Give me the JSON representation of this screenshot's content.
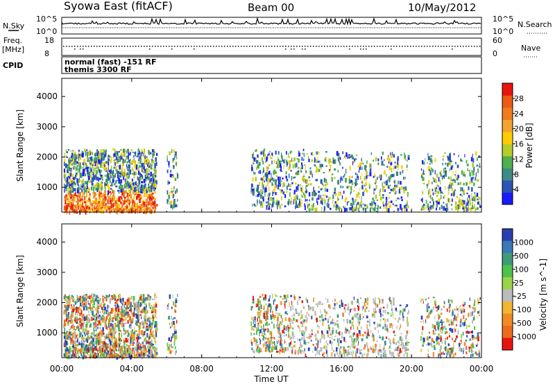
{
  "header": {
    "station": "Syowa East (fitACF)",
    "beam": "Beam 00",
    "date": "10/May/2012"
  },
  "top_panels": {
    "nsky": {
      "label": "N.Sky",
      "ticks": [
        "10^5",
        "10^0"
      ],
      "right_label": "N.Search",
      "right_ticks": [
        "10^5",
        "10^0"
      ]
    },
    "freq": {
      "label_line1": "Freq.",
      "label_line2": "[MHz]",
      "ticks": [
        "18",
        "8"
      ],
      "right_label": "Nave",
      "right_ticks": [
        "60",
        "0"
      ]
    },
    "cpid": {
      "label": "CPID",
      "line1": "normal (fast) -151 RF",
      "line2": "themis 3300 RF"
    }
  },
  "axes": {
    "xlabel": "Time UT",
    "ylabel": "Slant Range [km]",
    "xticks": [
      "00:00",
      "04:00",
      "08:00",
      "12:00",
      "16:00",
      "20:00",
      "00:00"
    ],
    "yticks": [
      "1000",
      "2000",
      "3000",
      "4000"
    ]
  },
  "chart_data": [
    {
      "type": "heatmap",
      "title": "",
      "xlabel": "Time UT",
      "ylabel": "Slant Range [km]",
      "xlim": [
        0,
        24
      ],
      "ylim": [
        180,
        4600
      ],
      "colorbar": {
        "label": "Power [dB]",
        "ticks": [
          "4",
          "8",
          "12",
          "16",
          "20",
          "24",
          "28"
        ],
        "colors": [
          "#1a1aff",
          "#2a55b5",
          "#3f8a84",
          "#4caf50",
          "#b5cc2a",
          "#ffcc00",
          "#f2a330",
          "#f07c1c",
          "#ec5a14",
          "#e8150e"
        ]
      }
    },
    {
      "type": "heatmap",
      "title": "",
      "xlabel": "Time UT",
      "ylabel": "Slant Range [km]",
      "xlim": [
        0,
        24
      ],
      "ylim": [
        180,
        4600
      ],
      "colorbar": {
        "label": "Velocity [m s^-1]",
        "ticks": [
          "1000",
          "500",
          "100",
          "25",
          "-25",
          "-100",
          "-500",
          "-1000"
        ],
        "colors": [
          "#2a3fb0",
          "#3b78b8",
          "#3f9a7a",
          "#4cc24a",
          "#9ad24a",
          "#bbbbbb",
          "#f2b531",
          "#f08a24",
          "#ec6b1b",
          "#e8150e"
        ]
      }
    }
  ]
}
